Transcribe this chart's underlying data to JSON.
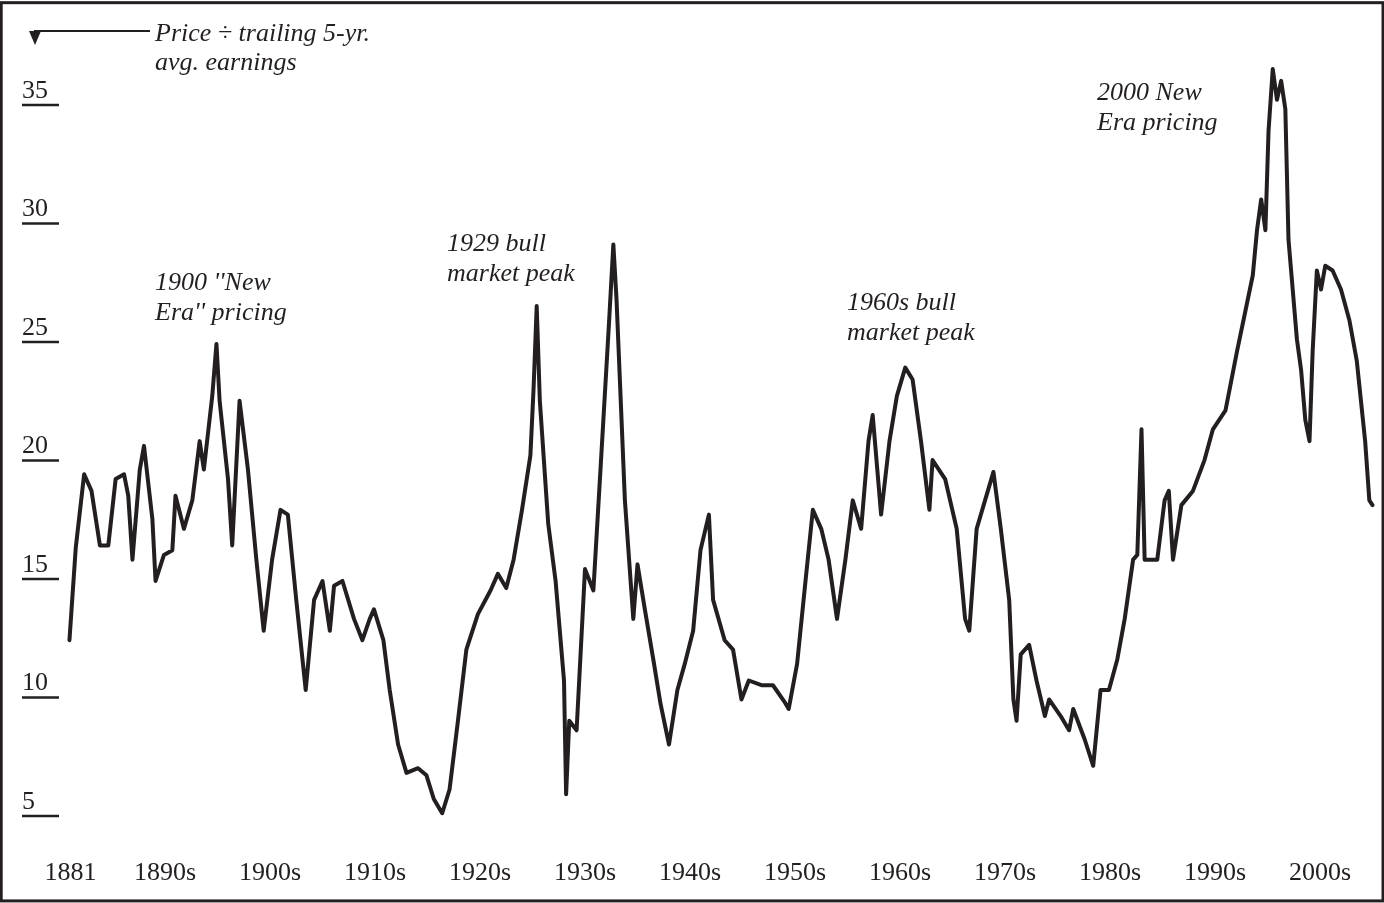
{
  "chart_data": {
    "type": "line",
    "ylabel": "Price ÷ trailing 5-yr. avg. earnings",
    "x": [
      1880.9,
      1881.5,
      1882.3,
      1883.0,
      1883.8,
      1884.6,
      1885.3,
      1886.1,
      1886.5,
      1886.9,
      1887.6,
      1888.0,
      1888.8,
      1889.1,
      1889.9,
      1890.7,
      1891.0,
      1891.8,
      1892.6,
      1893.3,
      1893.7,
      1894.5,
      1894.9,
      1895.2,
      1896.0,
      1896.4,
      1897.1,
      1897.9,
      1898.7,
      1899.4,
      1900.2,
      1901.0,
      1901.7,
      1902.5,
      1903.4,
      1904.2,
      1905.0,
      1905.7,
      1906.1,
      1906.9,
      1908.0,
      1908.8,
      1909.5,
      1909.9,
      1910.8,
      1911.4,
      1912.2,
      1913.0,
      1914.1,
      1914.9,
      1915.6,
      1916.4,
      1917.1,
      1917.9,
      1918.7,
      1919.8,
      1921.0,
      1921.7,
      1922.5,
      1923.2,
      1924.0,
      1924.8,
      1925.1,
      1925.4,
      1925.7,
      1926.5,
      1927.2,
      1928.0,
      1928.2,
      1928.5,
      1929.2,
      1930.0,
      1930.8,
      1931.5,
      1932.3,
      1932.7,
      1933.0,
      1933.8,
      1934.6,
      1935.0,
      1935.7,
      1936.5,
      1937.2,
      1938.0,
      1938.8,
      1939.5,
      1940.3,
      1941.0,
      1941.8,
      1942.2,
      1943.3,
      1944.1,
      1944.9,
      1945.6,
      1946.8,
      1947.9,
      1949.0,
      1949.4,
      1950.2,
      1951.0,
      1951.7,
      1952.5,
      1953.2,
      1954.0,
      1954.8,
      1955.5,
      1956.3,
      1957.0,
      1957.4,
      1958.2,
      1959.0,
      1959.7,
      1960.5,
      1961.2,
      1962.0,
      1962.8,
      1963.1,
      1964.3,
      1965.4,
      1966.2,
      1966.6,
      1967.3,
      1968.1,
      1968.9,
      1969.6,
      1970.4,
      1970.8,
      1971.1,
      1971.5,
      1972.3,
      1973.0,
      1973.8,
      1974.2,
      1975.3,
      1976.1,
      1976.5,
      1977.6,
      1978.4,
      1979.1,
      1979.9,
      1980.7,
      1981.4,
      1982.2,
      1982.6,
      1983.0,
      1983.3,
      1984.5,
      1985.2,
      1985.6,
      1986.0,
      1986.8,
      1987.9,
      1989.0,
      1989.8,
      1991.0,
      1992.1,
      1992.9,
      1993.6,
      1994.0,
      1994.4,
      1994.8,
      1995.1,
      1995.5,
      1995.9,
      1996.3,
      1996.7,
      1997.0,
      1997.4,
      1997.8,
      1998.2,
      1998.6,
      1999.0,
      1999.3,
      1999.7,
      2000.1,
      2000.5,
      2001.2,
      2002.0,
      2002.8,
      2003.5,
      2004.3,
      2004.7,
      2005.0
    ],
    "series": [
      {
        "color": "#231f20",
        "values": [
          11.7,
          15.6,
          18.7,
          18.0,
          15.7,
          15.7,
          18.5,
          18.7,
          17.8,
          15.1,
          18.9,
          19.9,
          16.8,
          14.2,
          15.3,
          15.5,
          17.8,
          16.4,
          17.6,
          20.1,
          18.9,
          22.0,
          24.2,
          21.8,
          18.5,
          15.7,
          21.8,
          18.9,
          15.1,
          12.1,
          15.1,
          17.2,
          17.0,
          13.4,
          9.6,
          13.4,
          14.2,
          12.1,
          14.0,
          14.2,
          12.6,
          11.7,
          12.6,
          13.0,
          11.7,
          9.6,
          7.3,
          6.1,
          6.3,
          6.0,
          5.0,
          4.4,
          5.4,
          8.3,
          11.3,
          12.8,
          13.8,
          14.5,
          13.9,
          15.1,
          17.2,
          19.5,
          22.3,
          25.8,
          21.8,
          16.6,
          14.2,
          10.0,
          5.2,
          8.3,
          7.9,
          14.7,
          13.8,
          19.1,
          25.2,
          28.4,
          26.1,
          17.6,
          12.6,
          14.9,
          13.0,
          10.9,
          9.0,
          7.3,
          9.6,
          10.7,
          12.1,
          15.5,
          17.0,
          13.4,
          11.7,
          11.3,
          9.2,
          10.0,
          9.8,
          9.8,
          9.1,
          8.8,
          10.7,
          14.2,
          17.2,
          16.4,
          15.1,
          12.6,
          15.1,
          17.6,
          16.4,
          20.1,
          21.2,
          17.0,
          20.1,
          22.0,
          23.2,
          22.7,
          20.1,
          17.2,
          19.3,
          18.5,
          16.4,
          12.6,
          12.1,
          16.4,
          17.6,
          18.8,
          16.4,
          13.4,
          9.2,
          8.3,
          11.1,
          11.5,
          10.0,
          8.5,
          9.2,
          8.5,
          7.9,
          8.8,
          7.5,
          6.4,
          9.6,
          9.6,
          10.9,
          12.6,
          15.1,
          15.3,
          20.6,
          15.1,
          15.1,
          17.6,
          18.0,
          15.1,
          17.4,
          18.0,
          19.3,
          20.6,
          21.4,
          23.9,
          25.6,
          27.1,
          29.0,
          30.3,
          29.0,
          33.2,
          35.8,
          34.5,
          35.3,
          34.1,
          28.6,
          26.5,
          24.4,
          23.1,
          21.0,
          20.1,
          23.9,
          27.3,
          26.5,
          27.5,
          27.3,
          26.5,
          25.2,
          23.5,
          20.1,
          17.6,
          17.4
        ]
      }
    ],
    "xlim": [
      1874.4,
      2006.0
    ],
    "xticks": [
      {
        "value": 1881,
        "label": "1881"
      },
      {
        "value": 1890,
        "label": "1890s"
      },
      {
        "value": 1900,
        "label": "1900s"
      },
      {
        "value": 1910,
        "label": "1910s"
      },
      {
        "value": 1920,
        "label": "1920s"
      },
      {
        "value": 1930,
        "label": "1930s"
      },
      {
        "value": 1940,
        "label": "1940s"
      },
      {
        "value": 1950,
        "label": "1950s"
      },
      {
        "value": 1960,
        "label": "1960s"
      },
      {
        "value": 1970,
        "label": "1970s"
      },
      {
        "value": 1980,
        "label": "1980s"
      },
      {
        "value": 1990,
        "label": "1990s"
      },
      {
        "value": 2000,
        "label": "2000s"
      }
    ],
    "ylim": [
      0.7,
      38.6
    ],
    "yticks": [
      5,
      10,
      15,
      20,
      25,
      30,
      35
    ],
    "annotations": [
      "1900 ''New Era'' pricing",
      "1929 bull market peak",
      "1960s bull market peak",
      "2000 New Era pricing"
    ],
    "grid": false,
    "marker": "none",
    "line_style": "solid"
  }
}
